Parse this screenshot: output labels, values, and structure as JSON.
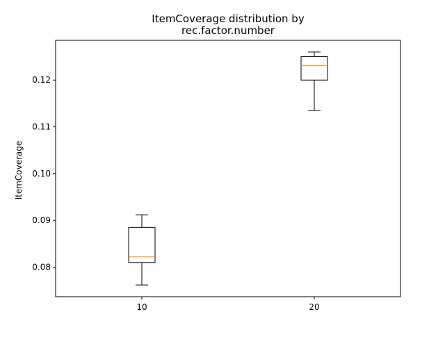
{
  "chart_data": {
    "type": "box",
    "title_lines": [
      "ItemCoverage distribution by",
      "rec.factor.number"
    ],
    "xlabel": "",
    "ylabel": "ItemCoverage",
    "categories": [
      "10",
      "20"
    ],
    "ylim": [
      0.0737,
      0.1285
    ],
    "yticks": [
      0.08,
      0.09,
      0.1,
      0.11,
      0.12
    ],
    "ytick_labels": [
      "0.08",
      "0.09",
      "0.10",
      "0.11",
      "0.12"
    ],
    "boxes": [
      {
        "category": "10",
        "whisker_low": 0.0762,
        "q1": 0.081,
        "median": 0.0822,
        "q3": 0.0885,
        "whisker_high": 0.0912
      },
      {
        "category": "20",
        "whisker_low": 0.1135,
        "q1": 0.12,
        "median": 0.1231,
        "q3": 0.125,
        "whisker_high": 0.126
      }
    ],
    "grid": false,
    "colors": {
      "box": "#000000",
      "median": "#ff7f0e",
      "axes": "#000000"
    }
  }
}
